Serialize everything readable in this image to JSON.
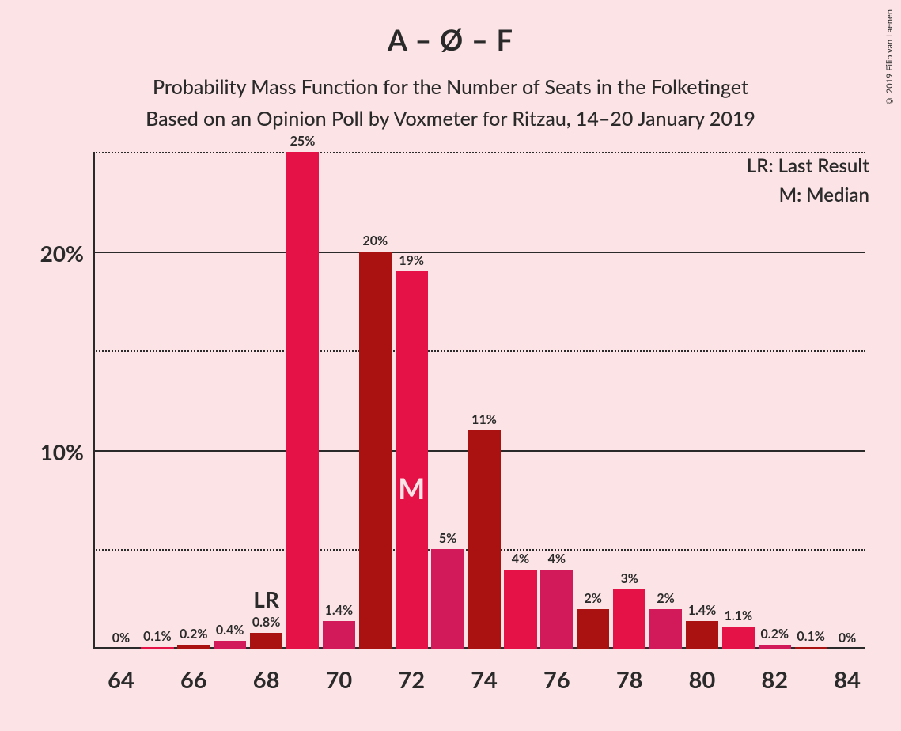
{
  "title": "A – Ø – F",
  "subtitle_line1": "Probability Mass Function for the Number of Seats in the Folketinget",
  "subtitle_line2": "Based on an Opinion Poll by Voxmeter for Ritzau, 14–20 January 2019",
  "copyright": "© 2019 Filip van Laenen",
  "legend": {
    "lr": "LR: Last Result",
    "m": "M: Median"
  },
  "chart": {
    "type": "bar",
    "background_color": "#fce3e5",
    "text_color": "#2a2a2a",
    "y": {
      "min": 0,
      "max": 25,
      "major_ticks": [
        10,
        20
      ],
      "minor_ticks": [
        5,
        15,
        25
      ],
      "label_suffix": "%"
    },
    "x": {
      "values": [
        64,
        65,
        66,
        67,
        68,
        69,
        70,
        71,
        72,
        73,
        74,
        75,
        76,
        77,
        78,
        79,
        80,
        81,
        82,
        83,
        84
      ],
      "tick_step": 2
    },
    "colors": {
      "a": "#aa1111",
      "b": "#e51248",
      "c": "#d21a5a"
    },
    "lr_seat": 68,
    "median_seat": 72,
    "lr_text": "LR",
    "median_text": "M",
    "bars": [
      {
        "seat": 64,
        "value": 0,
        "label": "0%",
        "shade": "a"
      },
      {
        "seat": 65,
        "value": 0.1,
        "label": "0.1%",
        "shade": "b"
      },
      {
        "seat": 66,
        "value": 0.2,
        "label": "0.2%",
        "shade": "a"
      },
      {
        "seat": 67,
        "value": 0.4,
        "label": "0.4%",
        "shade": "c"
      },
      {
        "seat": 68,
        "value": 0.8,
        "label": "0.8%",
        "shade": "a"
      },
      {
        "seat": 69,
        "value": 25,
        "label": "25%",
        "shade": "b"
      },
      {
        "seat": 70,
        "value": 1.4,
        "label": "1.4%",
        "shade": "c"
      },
      {
        "seat": 71,
        "value": 20,
        "label": "20%",
        "shade": "a"
      },
      {
        "seat": 72,
        "value": 19,
        "label": "19%",
        "shade": "b"
      },
      {
        "seat": 73,
        "value": 5,
        "label": "5%",
        "shade": "c"
      },
      {
        "seat": 74,
        "value": 11,
        "label": "11%",
        "shade": "a"
      },
      {
        "seat": 75,
        "value": 4,
        "label": "4%",
        "shade": "b"
      },
      {
        "seat": 76,
        "value": 4,
        "label": "4%",
        "shade": "c"
      },
      {
        "seat": 77,
        "value": 2,
        "label": "2%",
        "shade": "a"
      },
      {
        "seat": 78,
        "value": 3,
        "label": "3%",
        "shade": "b"
      },
      {
        "seat": 79,
        "value": 2,
        "label": "2%",
        "shade": "c"
      },
      {
        "seat": 80,
        "value": 1.4,
        "label": "1.4%",
        "shade": "a"
      },
      {
        "seat": 81,
        "value": 1.1,
        "label": "1.1%",
        "shade": "b"
      },
      {
        "seat": 82,
        "value": 0.2,
        "label": "0.2%",
        "shade": "c"
      },
      {
        "seat": 83,
        "value": 0.1,
        "label": "0.1%",
        "shade": "a"
      },
      {
        "seat": 84,
        "value": 0,
        "label": "0%",
        "shade": "b"
      }
    ]
  }
}
